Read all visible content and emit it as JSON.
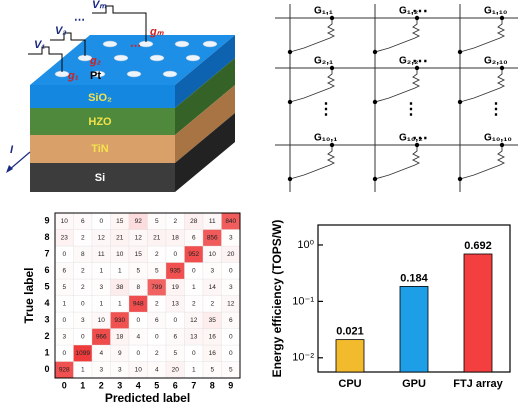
{
  "schematic": {
    "pulses": [
      "V₁",
      "V₂",
      "Vₘ"
    ],
    "pulse_dots": "⋯",
    "conductances": [
      "g₁",
      "g₂",
      "gₘ"
    ],
    "conductance_dots": "⋯",
    "layers": [
      "Pt",
      "SiO₂",
      "HZO",
      "TiN",
      "Si"
    ],
    "current": "I"
  },
  "crossbar": {
    "cells": [
      [
        "G₁,₁",
        "G₁,₂",
        "G₁,₁₀"
      ],
      [
        "G₂,₁",
        "G₂,₂",
        "G₂,₁₀"
      ],
      [
        "G₁₀,₁",
        "G₁₀,₂",
        "G₁₀,₁₀"
      ]
    ],
    "h_dots": "⋯",
    "v_dots": "⋮"
  },
  "chart_data": [
    {
      "type": "heatmap",
      "xlabel": "Predicted label",
      "ylabel": "True label",
      "x": [
        0,
        1,
        2,
        3,
        4,
        5,
        6,
        7,
        8,
        9
      ],
      "y": [
        0,
        1,
        2,
        3,
        4,
        5,
        6,
        7,
        8,
        9
      ],
      "values": [
        [
          928,
          1,
          3,
          3,
          10,
          4,
          20,
          1,
          5,
          5
        ],
        [
          0,
          1099,
          4,
          9,
          0,
          2,
          5,
          0,
          16,
          0
        ],
        [
          3,
          0,
          966,
          18,
          4,
          0,
          6,
          13,
          16,
          0
        ],
        [
          0,
          3,
          10,
          930,
          0,
          6,
          0,
          12,
          35,
          6
        ],
        [
          1,
          0,
          1,
          1,
          948,
          2,
          13,
          2,
          2,
          12
        ],
        [
          5,
          2,
          3,
          38,
          8,
          799,
          19,
          1,
          14,
          3
        ],
        [
          6,
          2,
          1,
          1,
          5,
          5,
          935,
          0,
          3,
          0
        ],
        [
          0,
          8,
          11,
          10,
          15,
          2,
          0,
          952,
          10,
          20
        ],
        [
          23,
          2,
          12,
          21,
          12,
          21,
          18,
          6,
          856,
          3
        ],
        [
          10,
          6,
          0,
          15,
          92,
          5,
          2,
          28,
          11,
          840
        ]
      ],
      "color": "#ee3b3b"
    },
    {
      "type": "bar",
      "ylabel": "Energy efficiency (TOPS/W)",
      "categories": [
        "CPU",
        "GPU",
        "FTJ array"
      ],
      "values": [
        0.021,
        0.184,
        0.692
      ],
      "colors": [
        "#f2bb2e",
        "#1f9ee8",
        "#f33f3f"
      ],
      "ylim": [
        0.0056,
        2.26
      ],
      "log_scale": true,
      "yticks": [
        {
          "value": 0.01,
          "label": "10⁻²"
        },
        {
          "value": 0.1,
          "label": "10⁻¹"
        },
        {
          "value": 1,
          "label": "10⁰"
        }
      ]
    }
  ]
}
